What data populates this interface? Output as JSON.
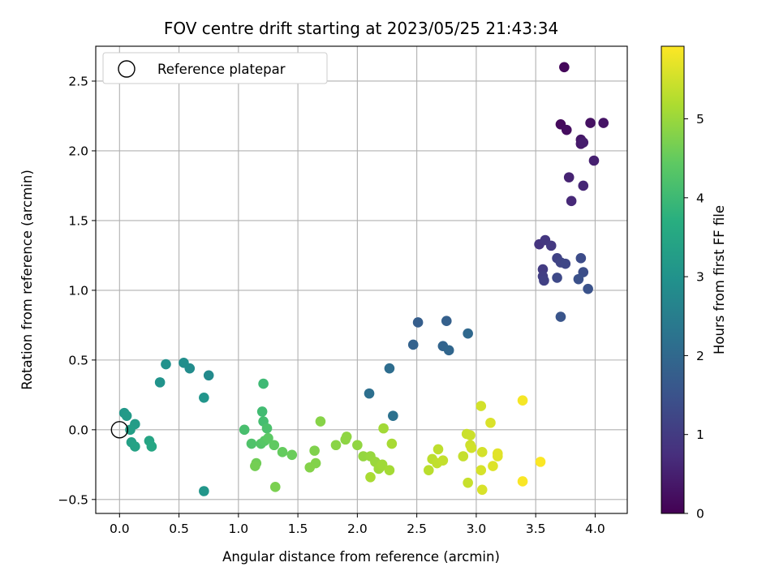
{
  "chart_data": {
    "type": "scatter",
    "title": "FOV centre drift starting at 2023/05/25 21:43:34",
    "xlabel": "Angular distance from reference (arcmin)",
    "ylabel": "Rotation from reference (arcmin)",
    "xlim": [
      -0.2,
      4.27
    ],
    "ylim": [
      -0.6,
      2.75
    ],
    "xticks": [
      0.0,
      0.5,
      1.0,
      1.5,
      2.0,
      2.5,
      3.0,
      3.5,
      4.0
    ],
    "xtick_labels": [
      "0.0",
      "0.5",
      "1.0",
      "1.5",
      "2.0",
      "2.5",
      "3.0",
      "3.5",
      "4.0"
    ],
    "yticks": [
      -0.5,
      0.0,
      0.5,
      1.0,
      1.5,
      2.0,
      2.5
    ],
    "ytick_labels": [
      "−0.5",
      "0.0",
      "0.5",
      "1.0",
      "1.5",
      "2.0",
      "2.5"
    ],
    "grid": true,
    "legend": {
      "placement": "top-left",
      "label": "Reference platepar"
    },
    "reference_point": {
      "x": 0.0,
      "y": 0.0,
      "name": "Reference platepar"
    },
    "colorbar": {
      "label": "Hours from first FF file",
      "colormap": "viridis",
      "range": [
        0,
        5.92
      ],
      "ticks": [
        0,
        1,
        2,
        3,
        4,
        5
      ],
      "tick_labels": [
        "0",
        "1",
        "2",
        "3",
        "4",
        "5"
      ]
    },
    "series": [
      {
        "points": [
          {
            "x": 3.74,
            "y": 2.6,
            "c": 0.1
          },
          {
            "x": 3.71,
            "y": 2.19,
            "c": 0.15
          },
          {
            "x": 3.76,
            "y": 2.15,
            "c": 0.2
          },
          {
            "x": 3.96,
            "y": 2.2,
            "c": 0.25
          },
          {
            "x": 4.07,
            "y": 2.2,
            "c": 0.3
          },
          {
            "x": 3.88,
            "y": 2.08,
            "c": 0.35
          },
          {
            "x": 3.88,
            "y": 2.05,
            "c": 0.4
          },
          {
            "x": 3.9,
            "y": 2.06,
            "c": 0.45
          },
          {
            "x": 3.99,
            "y": 1.93,
            "c": 0.5
          },
          {
            "x": 3.78,
            "y": 1.81,
            "c": 0.55
          },
          {
            "x": 3.9,
            "y": 1.75,
            "c": 0.6
          },
          {
            "x": 3.8,
            "y": 1.64,
            "c": 0.65
          },
          {
            "x": 3.53,
            "y": 1.33,
            "c": 0.85
          },
          {
            "x": 3.58,
            "y": 1.36,
            "c": 0.9
          },
          {
            "x": 3.63,
            "y": 1.32,
            "c": 0.95
          },
          {
            "x": 3.56,
            "y": 1.15,
            "c": 1.0
          },
          {
            "x": 3.56,
            "y": 1.1,
            "c": 1.05
          },
          {
            "x": 3.57,
            "y": 1.07,
            "c": 1.1
          },
          {
            "x": 3.68,
            "y": 1.23,
            "c": 1.15
          },
          {
            "x": 3.71,
            "y": 1.2,
            "c": 1.2
          },
          {
            "x": 3.75,
            "y": 1.19,
            "c": 1.25
          },
          {
            "x": 3.68,
            "y": 1.09,
            "c": 1.3
          },
          {
            "x": 3.88,
            "y": 1.23,
            "c": 1.35
          },
          {
            "x": 3.9,
            "y": 1.13,
            "c": 1.4
          },
          {
            "x": 3.86,
            "y": 1.08,
            "c": 1.45
          },
          {
            "x": 3.94,
            "y": 1.01,
            "c": 1.5
          },
          {
            "x": 3.71,
            "y": 0.81,
            "c": 1.55
          },
          {
            "x": 2.51,
            "y": 0.77,
            "c": 1.75
          },
          {
            "x": 2.75,
            "y": 0.78,
            "c": 1.8
          },
          {
            "x": 2.47,
            "y": 0.61,
            "c": 1.85
          },
          {
            "x": 2.72,
            "y": 0.6,
            "c": 1.9
          },
          {
            "x": 2.77,
            "y": 0.57,
            "c": 1.95
          },
          {
            "x": 2.93,
            "y": 0.69,
            "c": 2.0
          },
          {
            "x": 2.27,
            "y": 0.44,
            "c": 2.1
          },
          {
            "x": 2.1,
            "y": 0.26,
            "c": 2.15
          },
          {
            "x": 2.3,
            "y": 0.1,
            "c": 2.2
          },
          {
            "x": 0.75,
            "y": 0.39,
            "c": 2.8
          },
          {
            "x": 0.59,
            "y": 0.44,
            "c": 2.85
          },
          {
            "x": 0.54,
            "y": 0.48,
            "c": 2.9
          },
          {
            "x": 0.39,
            "y": 0.47,
            "c": 2.95
          },
          {
            "x": 0.34,
            "y": 0.34,
            "c": 3.0
          },
          {
            "x": 0.71,
            "y": 0.23,
            "c": 3.05
          },
          {
            "x": 0.71,
            "y": -0.44,
            "c": 3.1
          },
          {
            "x": 0.04,
            "y": 0.12,
            "c": 3.15
          },
          {
            "x": 0.06,
            "y": 0.1,
            "c": 3.2
          },
          {
            "x": 0.13,
            "y": 0.04,
            "c": 3.25
          },
          {
            "x": 0.09,
            "y": 0.0,
            "c": 3.3
          },
          {
            "x": 0.1,
            "y": -0.09,
            "c": 3.35
          },
          {
            "x": 0.13,
            "y": -0.12,
            "c": 3.4
          },
          {
            "x": 0.25,
            "y": -0.08,
            "c": 3.45
          },
          {
            "x": 0.27,
            "y": -0.12,
            "c": 3.5
          },
          {
            "x": 1.21,
            "y": 0.33,
            "c": 4.0
          },
          {
            "x": 1.2,
            "y": 0.13,
            "c": 4.05
          },
          {
            "x": 1.21,
            "y": 0.06,
            "c": 4.1
          },
          {
            "x": 1.05,
            "y": 0.0,
            "c": 4.15
          },
          {
            "x": 1.24,
            "y": 0.01,
            "c": 4.2
          },
          {
            "x": 1.11,
            "y": -0.1,
            "c": 4.25
          },
          {
            "x": 1.19,
            "y": -0.1,
            "c": 4.3
          },
          {
            "x": 1.22,
            "y": -0.08,
            "c": 4.35
          },
          {
            "x": 1.25,
            "y": -0.06,
            "c": 4.4
          },
          {
            "x": 1.3,
            "y": -0.11,
            "c": 4.45
          },
          {
            "x": 1.37,
            "y": -0.16,
            "c": 4.5
          },
          {
            "x": 1.45,
            "y": -0.18,
            "c": 4.55
          },
          {
            "x": 1.15,
            "y": -0.24,
            "c": 4.6
          },
          {
            "x": 1.14,
            "y": -0.26,
            "c": 4.65
          },
          {
            "x": 1.31,
            "y": -0.41,
            "c": 4.7
          },
          {
            "x": 1.64,
            "y": -0.15,
            "c": 4.75
          },
          {
            "x": 1.65,
            "y": -0.24,
            "c": 4.78
          },
          {
            "x": 1.6,
            "y": -0.27,
            "c": 4.8
          },
          {
            "x": 1.69,
            "y": 0.06,
            "c": 4.82
          },
          {
            "x": 1.82,
            "y": -0.11,
            "c": 4.85
          },
          {
            "x": 1.9,
            "y": -0.07,
            "c": 4.88
          },
          {
            "x": 1.91,
            "y": -0.05,
            "c": 4.9
          },
          {
            "x": 2.0,
            "y": -0.11,
            "c": 4.92
          },
          {
            "x": 2.05,
            "y": -0.19,
            "c": 4.95
          },
          {
            "x": 2.11,
            "y": -0.19,
            "c": 4.97
          },
          {
            "x": 2.15,
            "y": -0.23,
            "c": 5.0
          },
          {
            "x": 2.18,
            "y": -0.28,
            "c": 5.02
          },
          {
            "x": 2.19,
            "y": -0.27,
            "c": 5.04
          },
          {
            "x": 2.21,
            "y": -0.25,
            "c": 5.06
          },
          {
            "x": 2.22,
            "y": 0.01,
            "c": 5.08
          },
          {
            "x": 2.27,
            "y": -0.29,
            "c": 5.1
          },
          {
            "x": 2.29,
            "y": -0.1,
            "c": 5.12
          },
          {
            "x": 2.11,
            "y": -0.34,
            "c": 5.14
          },
          {
            "x": 2.6,
            "y": -0.29,
            "c": 5.3
          },
          {
            "x": 2.63,
            "y": -0.21,
            "c": 5.32
          },
          {
            "x": 2.68,
            "y": -0.14,
            "c": 5.34
          },
          {
            "x": 2.67,
            "y": -0.24,
            "c": 5.36
          },
          {
            "x": 2.72,
            "y": -0.22,
            "c": 5.38
          },
          {
            "x": 2.89,
            "y": -0.19,
            "c": 5.4
          },
          {
            "x": 2.93,
            "y": -0.38,
            "c": 5.42
          },
          {
            "x": 2.92,
            "y": -0.03,
            "c": 5.44
          },
          {
            "x": 2.95,
            "y": -0.04,
            "c": 5.46
          },
          {
            "x": 2.95,
            "y": -0.11,
            "c": 5.48
          },
          {
            "x": 2.96,
            "y": -0.13,
            "c": 5.5
          },
          {
            "x": 3.04,
            "y": 0.17,
            "c": 5.52
          },
          {
            "x": 3.05,
            "y": -0.16,
            "c": 5.54
          },
          {
            "x": 3.04,
            "y": -0.29,
            "c": 5.56
          },
          {
            "x": 3.05,
            "y": -0.43,
            "c": 5.58
          },
          {
            "x": 3.12,
            "y": 0.05,
            "c": 5.6
          },
          {
            "x": 3.14,
            "y": -0.26,
            "c": 5.62
          },
          {
            "x": 3.18,
            "y": -0.19,
            "c": 5.64
          },
          {
            "x": 3.18,
            "y": -0.17,
            "c": 5.66
          },
          {
            "x": 3.39,
            "y": 0.21,
            "c": 5.85
          },
          {
            "x": 3.39,
            "y": -0.37,
            "c": 5.88
          },
          {
            "x": 3.54,
            "y": -0.23,
            "c": 5.9
          }
        ]
      }
    ]
  }
}
